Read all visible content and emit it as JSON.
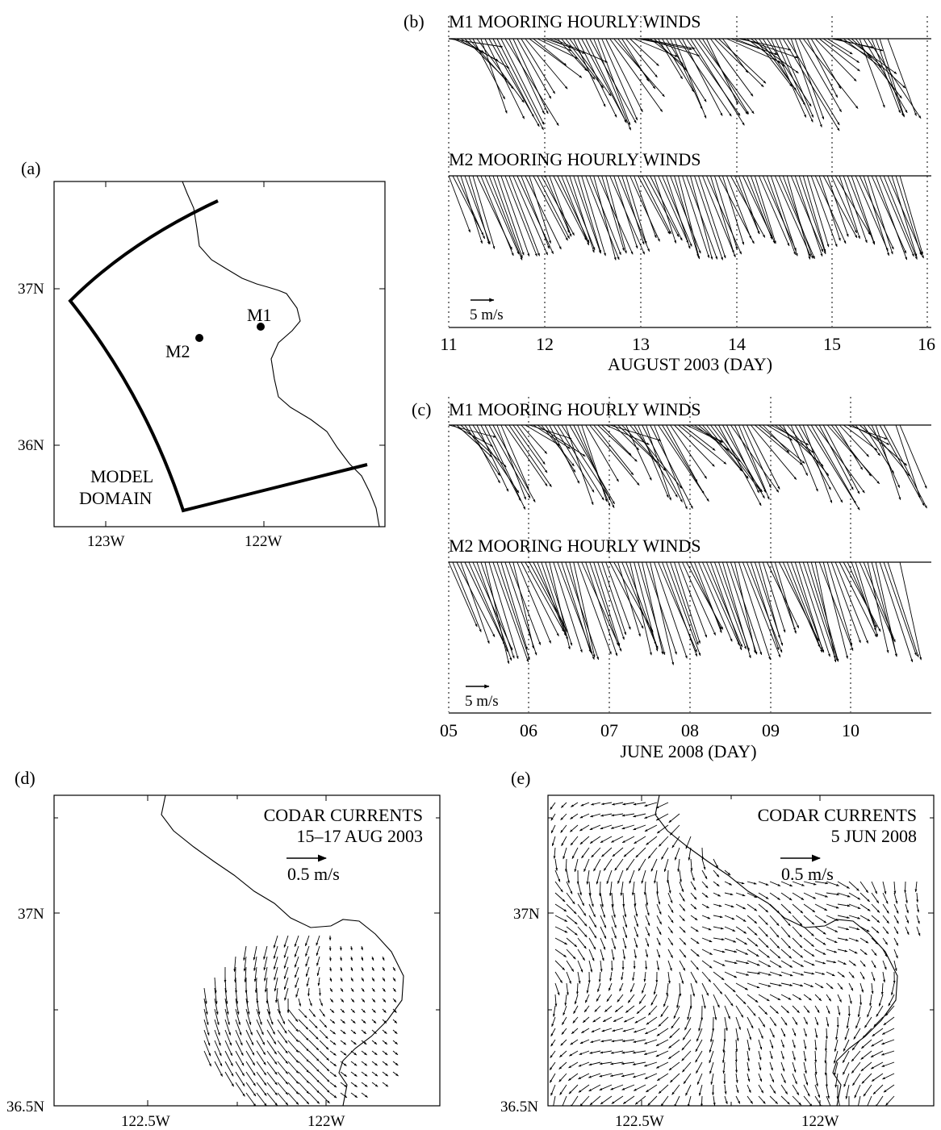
{
  "panel_a": {
    "label": "(a)",
    "yticks": [
      "37N",
      "36N"
    ],
    "xticks": [
      "123W",
      "122W"
    ],
    "stations": [
      "M1",
      "M2"
    ],
    "domain_label_1": "MODEL",
    "domain_label_2": "DOMAIN"
  },
  "panel_b": {
    "label": "(b)",
    "title_m1": "M1 MOORING HOURLY WINDS",
    "title_m2": "M2 MOORING HOURLY WINDS",
    "scale": "5 m/s",
    "xticks": [
      "11",
      "12",
      "13",
      "14",
      "15",
      "16"
    ],
    "xlabel": "AUGUST 2003 (DAY)"
  },
  "panel_c": {
    "label": "(c)",
    "title_m1": "M1 MOORING HOURLY WINDS",
    "title_m2": "M2 MOORING HOURLY WINDS",
    "scale": "5 m/s",
    "xticks": [
      "05",
      "06",
      "07",
      "08",
      "09",
      "10"
    ],
    "xlabel": "JUNE 2008 (DAY)"
  },
  "panel_d": {
    "label": "(d)",
    "title_1": "CODAR CURRENTS",
    "title_2": "15–17 AUG 2003",
    "scale": "0.5 m/s",
    "yticks": [
      "37N",
      "36.5N"
    ],
    "xticks": [
      "122.5W",
      "122W"
    ]
  },
  "panel_e": {
    "label": "(e)",
    "title_1": "CODAR CURRENTS",
    "title_2": "5 JUN 2008",
    "scale": "0.5 m/s",
    "yticks": [
      "37N",
      "36.5N"
    ],
    "xticks": [
      "122.5W",
      "122W"
    ]
  }
}
